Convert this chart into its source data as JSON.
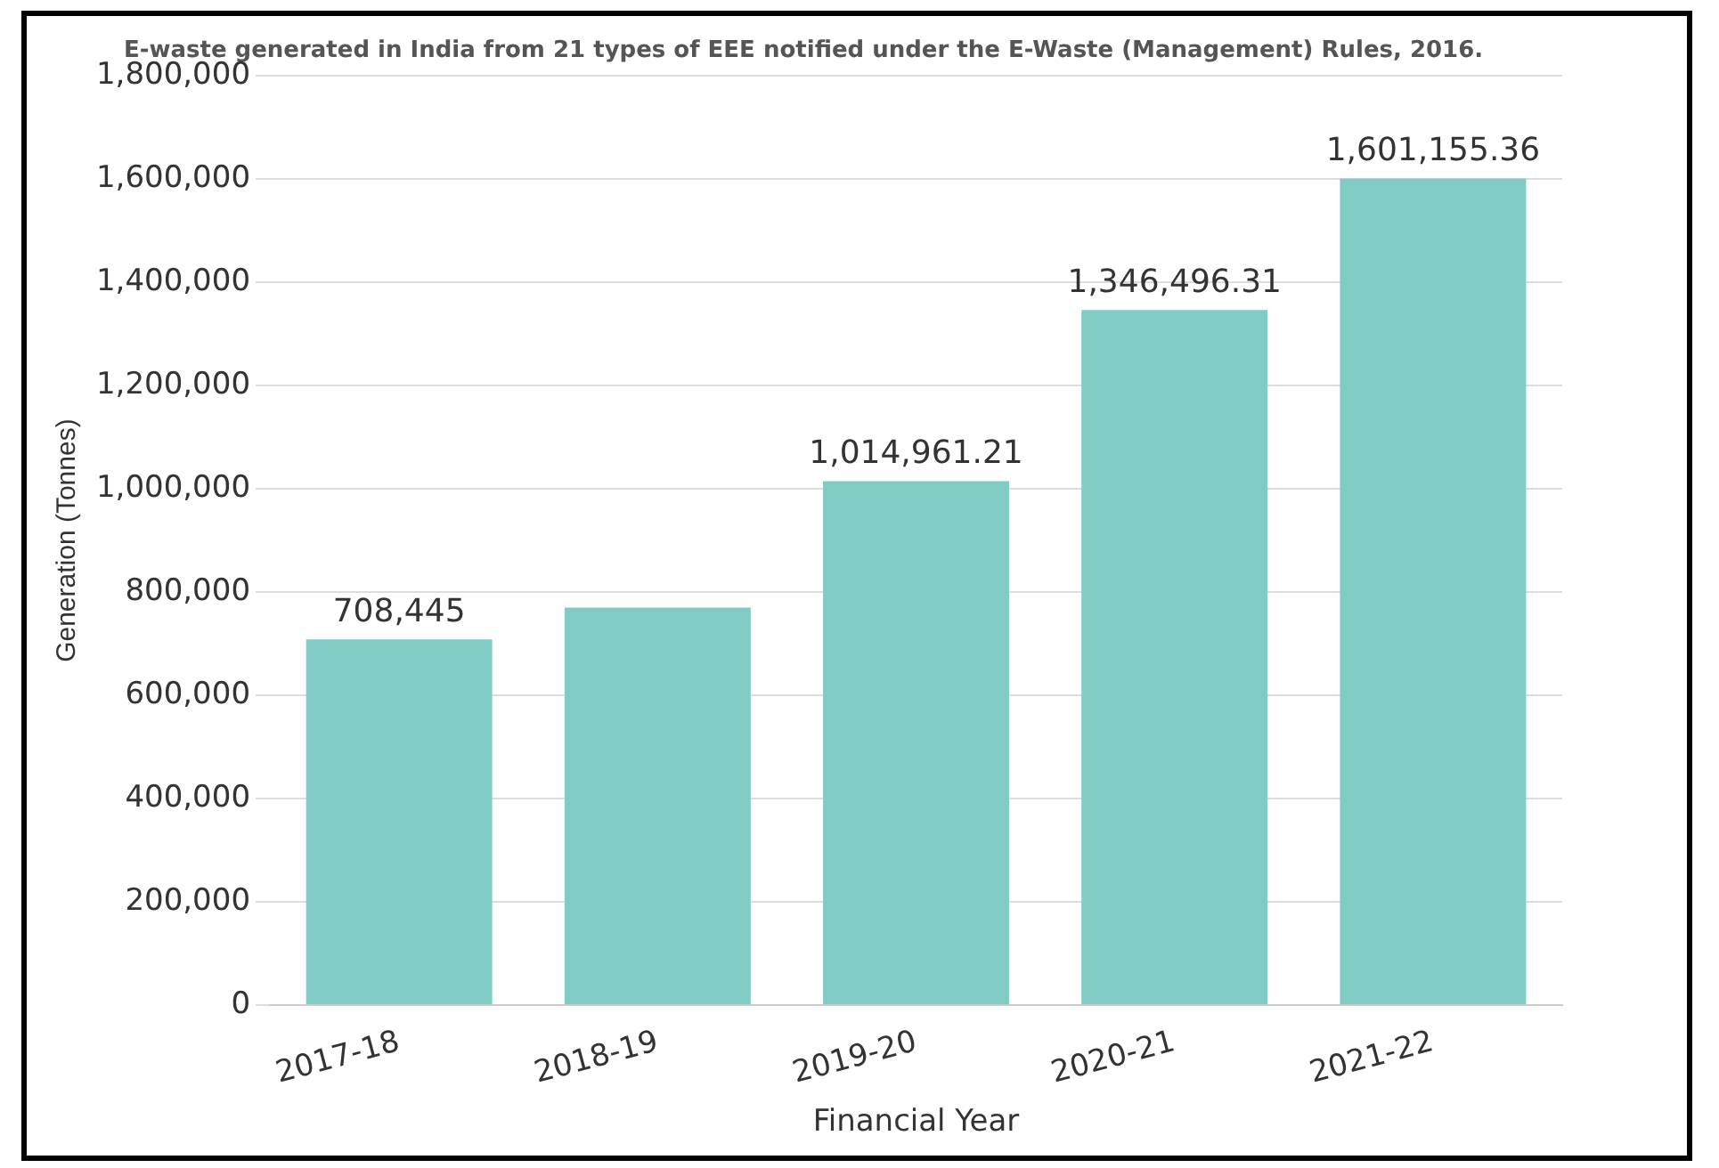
{
  "chart_data": {
    "type": "bar",
    "title": "E-waste generated in India from 21 types of EEE notified under the E-Waste (Management) Rules, 2016.",
    "xlabel": "Financial Year",
    "ylabel": "Generation (Tonnes)",
    "categories": [
      "2017-18",
      "2018-19",
      "2019-20",
      "2020-21",
      "2021-22"
    ],
    "values": [
      708445,
      770000,
      1014961.21,
      1346496.31,
      1601155.36
    ],
    "value_labels": [
      "708,445",
      null,
      "1,014,961.21",
      "1,346,496.31",
      "1,601,155.36"
    ],
    "color": "#80cbc4",
    "ylim": [
      0,
      1800000
    ],
    "yticks": [
      0,
      {
        "value": 200000,
        "label": "200,000"
      },
      {
        "value": 400000,
        "label": "400,000"
      },
      {
        "value": 600000,
        "label": "600,000"
      },
      {
        "value": 800000,
        "label": "800,000"
      },
      {
        "value": 1000000,
        "label": "1,000,000"
      },
      {
        "value": 1200000,
        "label": "1,200,000"
      },
      {
        "value": 1400000,
        "label": "1,400,000"
      },
      {
        "value": 1600000,
        "label": "1,600,000"
      },
      {
        "value": 1800000,
        "label": "1,800,000"
      }
    ],
    "grid": "y",
    "legend": false
  }
}
